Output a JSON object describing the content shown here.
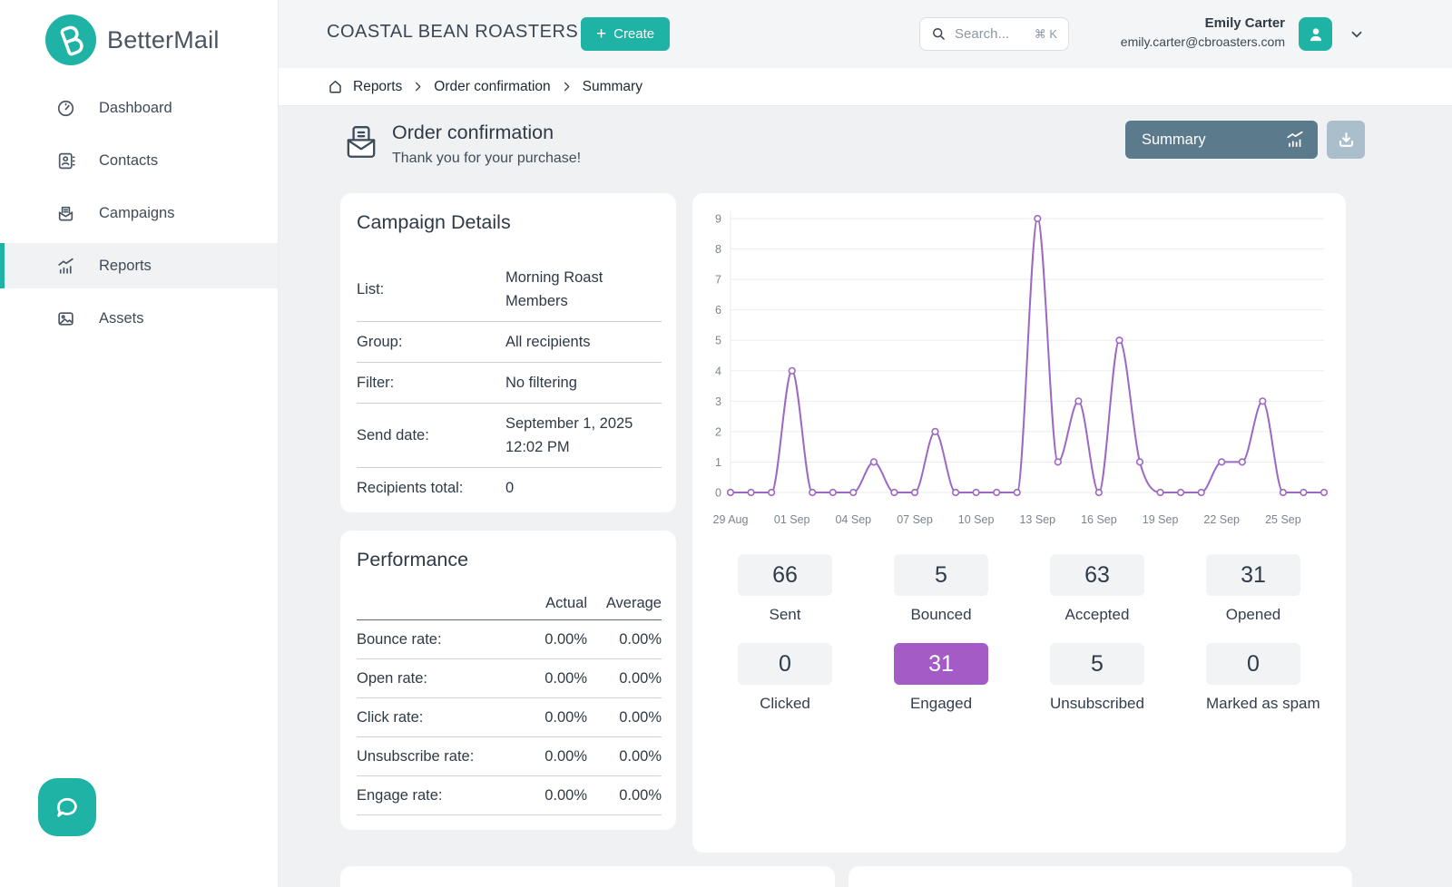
{
  "brand": {
    "name": "BetterMail"
  },
  "colors": {
    "teal": "#1fb3a6",
    "summary_button": "#5b7b8c",
    "download_button": "#aabecb",
    "chart_line": "#9d68c3",
    "engaged_highlight": "#a55bc5"
  },
  "icons": {
    "plus": "+"
  },
  "sidebar": {
    "items": [
      {
        "label": "Dashboard",
        "icon": "gauge-icon",
        "active": false
      },
      {
        "label": "Contacts",
        "icon": "contact-card-icon",
        "active": false
      },
      {
        "label": "Campaigns",
        "icon": "envelope-letter-icon",
        "active": false
      },
      {
        "label": "Reports",
        "icon": "analytics-icon",
        "active": true
      },
      {
        "label": "Assets",
        "icon": "image-icon",
        "active": false
      }
    ]
  },
  "topbar": {
    "workspace_title": "COASTAL BEAN ROASTERS",
    "create_label": "Create",
    "search_placeholder": "Search...",
    "search_shortcut": "⌘ K",
    "user_name": "Emily Carter",
    "user_email": "emily.carter@cbroasters.com"
  },
  "breadcrumb": {
    "items": [
      "Reports",
      "Order confirmation",
      "Summary"
    ]
  },
  "page": {
    "title": "Order confirmation",
    "subtitle": "Thank you for your purchase!",
    "view_button_label": "Summary"
  },
  "campaign_details": {
    "title": "Campaign Details",
    "rows": [
      {
        "label": "List:",
        "value": "Morning Roast Members"
      },
      {
        "label": "Group:",
        "value": "All recipients"
      },
      {
        "label": "Filter:",
        "value": "No filtering"
      },
      {
        "label": "Send date:",
        "value": "September 1, 2025 12:02 PM"
      },
      {
        "label": "Recipients total:",
        "value": "0"
      }
    ]
  },
  "performance": {
    "title": "Performance",
    "col_headers": [
      "Actual",
      "Average"
    ],
    "rows": [
      {
        "label": "Bounce rate:",
        "actual": "0.00%",
        "average": "0.00%"
      },
      {
        "label": "Open rate:",
        "actual": "0.00%",
        "average": "0.00%"
      },
      {
        "label": "Click rate:",
        "actual": "0.00%",
        "average": "0.00%"
      },
      {
        "label": "Unsubscribe rate:",
        "actual": "0.00%",
        "average": "0.00%"
      },
      {
        "label": "Engage rate:",
        "actual": "0.00%",
        "average": "0.00%"
      }
    ]
  },
  "stats": [
    {
      "value": "66",
      "label": "Sent",
      "highlight": false
    },
    {
      "value": "5",
      "label": "Bounced",
      "highlight": false
    },
    {
      "value": "63",
      "label": "Accepted",
      "highlight": false
    },
    {
      "value": "31",
      "label": "Opened",
      "highlight": false
    },
    {
      "value": "0",
      "label": "Clicked",
      "highlight": false
    },
    {
      "value": "31",
      "label": "Engaged",
      "highlight": true
    },
    {
      "value": "5",
      "label": "Unsubscribed",
      "highlight": false
    },
    {
      "value": "0",
      "label": "Marked as spam",
      "highlight": false
    }
  ],
  "chart_data": {
    "type": "line",
    "title": "",
    "xlabel": "",
    "ylabel": "",
    "x": [
      "29 Aug",
      "30 Aug",
      "31 Aug",
      "01 Sep",
      "02 Sep",
      "03 Sep",
      "04 Sep",
      "05 Sep",
      "06 Sep",
      "07 Sep",
      "08 Sep",
      "09 Sep",
      "10 Sep",
      "11 Sep",
      "12 Sep",
      "13 Sep",
      "14 Sep",
      "15 Sep",
      "16 Sep",
      "17 Sep",
      "18 Sep",
      "19 Sep",
      "20 Sep",
      "21 Sep",
      "22 Sep",
      "23 Sep",
      "24 Sep",
      "25 Sep",
      "26 Sep",
      "27 Sep"
    ],
    "values": [
      0,
      0,
      0,
      4,
      0,
      0,
      0,
      1,
      0,
      0,
      2,
      0,
      0,
      0,
      0,
      9,
      1,
      3,
      0,
      5,
      1,
      0,
      0,
      0,
      1,
      1,
      3,
      0,
      0,
      0
    ],
    "tick_every": 3,
    "ylim": [
      0,
      9
    ],
    "y_ticks": [
      0,
      1,
      2,
      3,
      4,
      5,
      6,
      7,
      8,
      9
    ],
    "grid": true,
    "legend": "none",
    "line_color": "#9d68c3",
    "point_style": "open-circle"
  }
}
